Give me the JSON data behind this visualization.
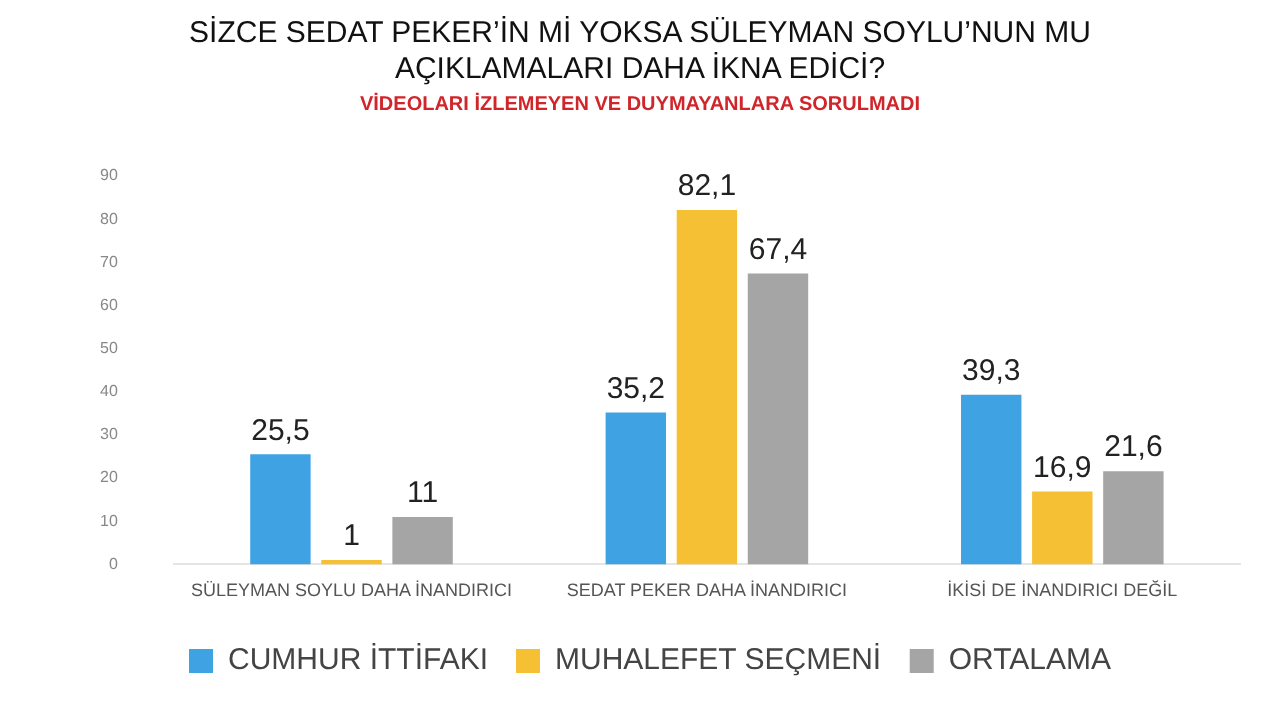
{
  "chart_data": {
    "type": "bar",
    "title": "SİZCE SEDAT PEKER’İN Mİ YOKSA SÜLEYMAN SOYLU’NUN MU AÇIKLAMALARI DAHA İKNA EDİCİ?",
    "subtitle": "VİDEOLARI İZLEMEYEN VE DUYMAYANLARA SORULMADI",
    "categories": [
      "SÜLEYMAN SOYLU DAHA İNANDIRICI",
      "SEDAT PEKER DAHA İNANDIRICI",
      "İKİSİ DE İNANDIRICI DEĞİL"
    ],
    "series": [
      {
        "name": "CUMHUR İTTİFAKI",
        "color": "#3fa3e3",
        "values": [
          25.5,
          35.2,
          39.3
        ],
        "value_labels": [
          "25,5",
          "35,2",
          "39,3"
        ]
      },
      {
        "name": "MUHALEFET SEÇMENİ",
        "color": "#f6c034",
        "values": [
          1,
          82.1,
          16.9
        ],
        "value_labels": [
          "1",
          "82,1",
          "16,9"
        ]
      },
      {
        "name": "ORTALAMA",
        "color": "#a5a5a5",
        "values": [
          11,
          67.4,
          21.6
        ],
        "value_labels": [
          "11",
          "67,4",
          "21,6"
        ]
      }
    ],
    "ylim": [
      0,
      90
    ],
    "yticks": [
      0,
      10,
      20,
      30,
      40,
      50,
      60,
      70,
      80,
      90
    ],
    "grid": false,
    "legend": "bottom"
  }
}
